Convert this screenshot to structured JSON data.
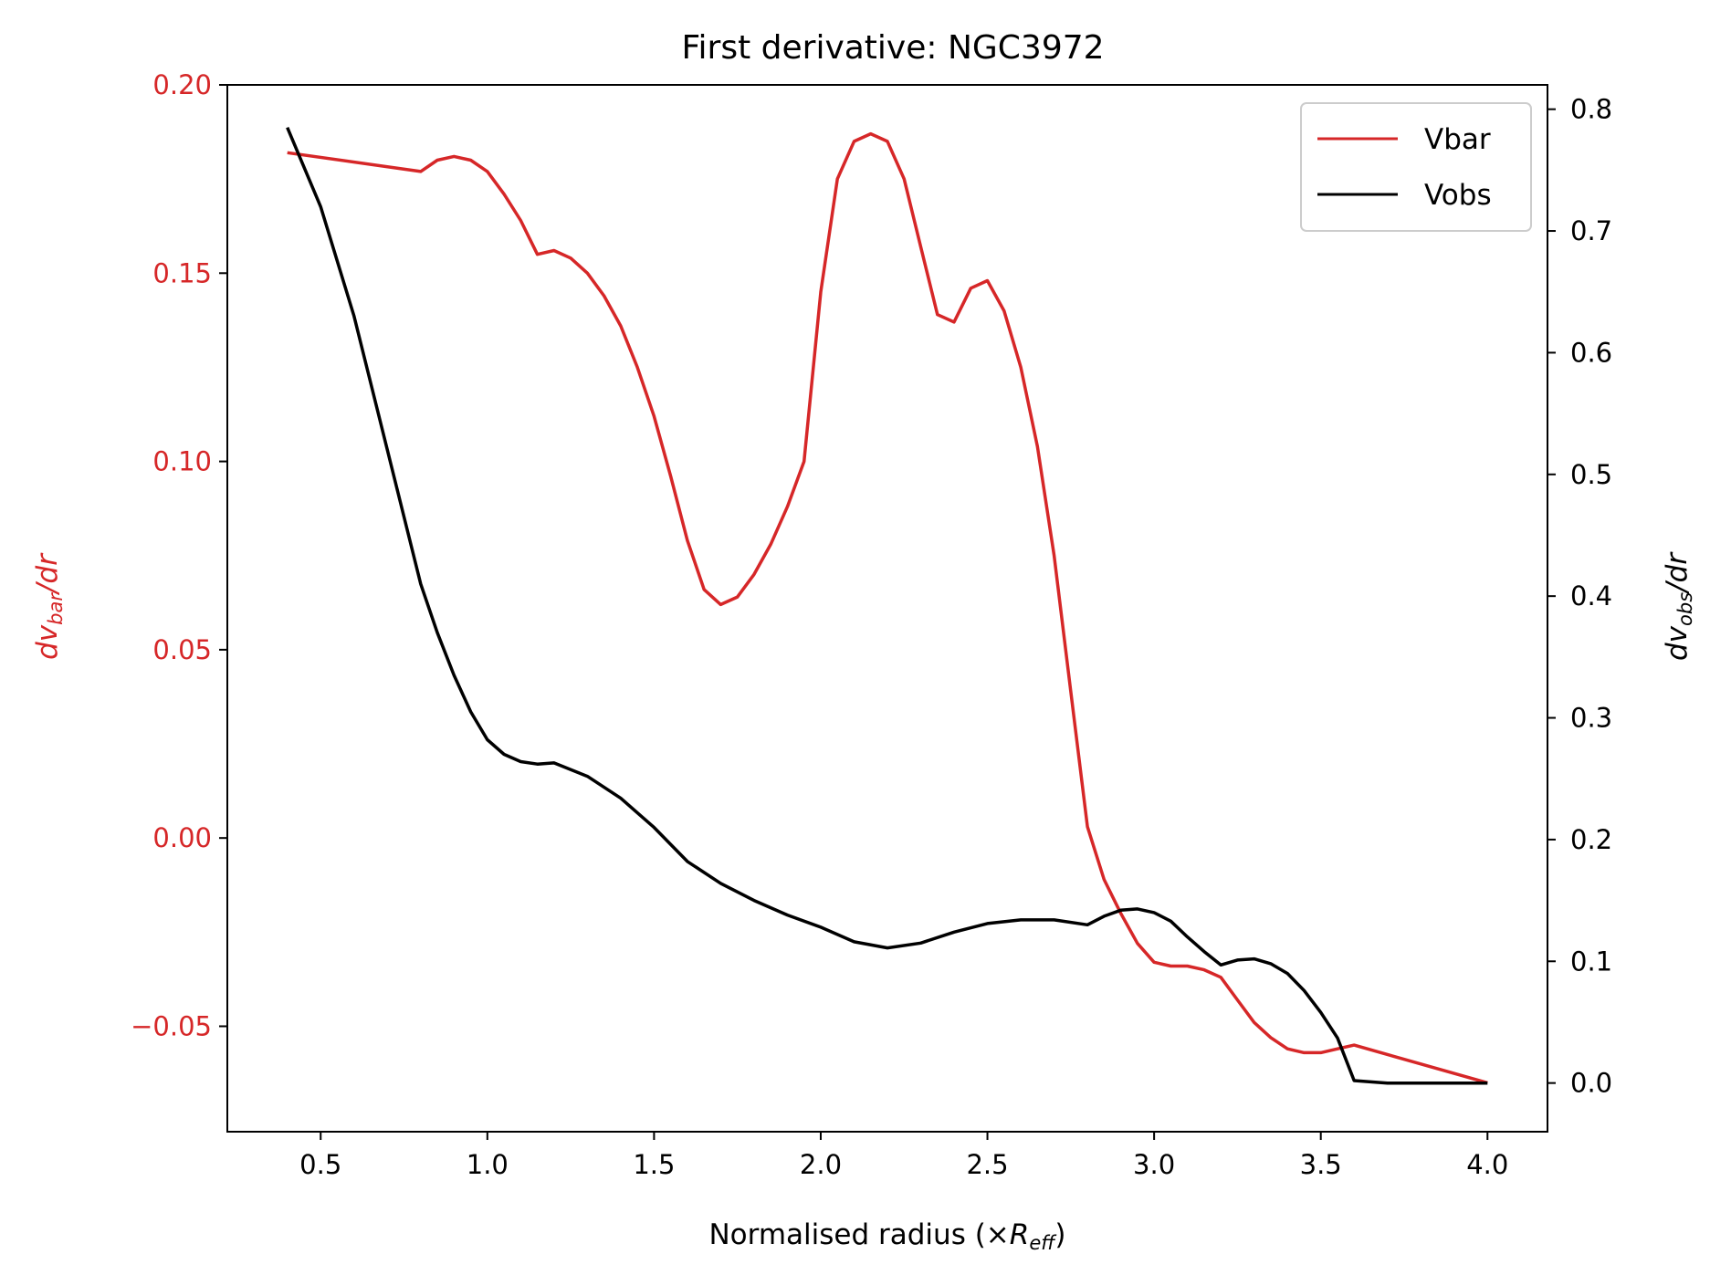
{
  "chart_data": {
    "type": "line",
    "title": "First derivative: NGC3972",
    "xlabel": "Normalised radius (×R_eff)",
    "xlabel_parts": {
      "main": "Normalised radius (×",
      "var": "R",
      "sub": "eff",
      "close": ")"
    },
    "ylabel_left": "dv_bar/dr",
    "ylabel_left_parts": {
      "var": "dv",
      "sub": "bar",
      "rest": "/dr"
    },
    "ylabel_right": "dv_obs/dr",
    "ylabel_right_parts": {
      "var": "dv",
      "sub": "obs",
      "rest": "/dr"
    },
    "xlim": [
      0.22,
      4.18
    ],
    "ylim_left": [
      -0.078,
      0.2
    ],
    "ylim_right": [
      -0.04,
      0.82
    ],
    "xticks": [
      0.5,
      1.0,
      1.5,
      2.0,
      2.5,
      3.0,
      3.5,
      4.0
    ],
    "xtick_labels": [
      "0.5",
      "1.0",
      "1.5",
      "2.0",
      "2.5",
      "3.0",
      "3.5",
      "4.0"
    ],
    "yticks_left": [
      -0.05,
      0.0,
      0.05,
      0.1,
      0.15,
      0.2
    ],
    "ytick_labels_left": [
      "−0.05",
      "0.00",
      "0.05",
      "0.10",
      "0.15",
      "0.20"
    ],
    "yticks_right": [
      0.0,
      0.1,
      0.2,
      0.3,
      0.4,
      0.5,
      0.6,
      0.7,
      0.8
    ],
    "ytick_labels_right": [
      "0.0",
      "0.1",
      "0.2",
      "0.3",
      "0.4",
      "0.5",
      "0.6",
      "0.7",
      "0.8"
    ],
    "grid": false,
    "legend_position": "upper right",
    "colors": {
      "left_axis": "#d62728",
      "right_axis": "#000000"
    },
    "series": [
      {
        "name": "Vbar",
        "axis": "left",
        "color": "#d62728",
        "x": [
          0.4,
          0.8,
          0.85,
          0.9,
          0.95,
          1.0,
          1.05,
          1.1,
          1.15,
          1.2,
          1.25,
          1.3,
          1.35,
          1.4,
          1.45,
          1.5,
          1.55,
          1.6,
          1.65,
          1.7,
          1.75,
          1.8,
          1.85,
          1.9,
          1.95,
          2.0,
          2.05,
          2.1,
          2.15,
          2.2,
          2.25,
          2.3,
          2.35,
          2.4,
          2.45,
          2.5,
          2.55,
          2.6,
          2.65,
          2.7,
          2.75,
          2.8,
          2.85,
          2.9,
          2.95,
          3.0,
          3.05,
          3.1,
          3.15,
          3.2,
          3.25,
          3.3,
          3.35,
          3.4,
          3.45,
          3.5,
          3.55,
          3.6,
          4.0
        ],
        "y": [
          0.182,
          0.177,
          0.18,
          0.181,
          0.18,
          0.177,
          0.171,
          0.164,
          0.155,
          0.156,
          0.154,
          0.15,
          0.144,
          0.136,
          0.125,
          0.112,
          0.096,
          0.079,
          0.066,
          0.062,
          0.064,
          0.07,
          0.078,
          0.088,
          0.1,
          0.145,
          0.175,
          0.185,
          0.187,
          0.185,
          0.175,
          0.157,
          0.139,
          0.137,
          0.146,
          0.148,
          0.14,
          0.125,
          0.104,
          0.075,
          0.039,
          0.003,
          -0.011,
          -0.02,
          -0.028,
          -0.033,
          -0.034,
          -0.034,
          -0.035,
          -0.037,
          -0.043,
          -0.049,
          -0.053,
          -0.056,
          -0.057,
          -0.057,
          -0.056,
          -0.055,
          -0.065
        ]
      },
      {
        "name": "Vobs",
        "axis": "right",
        "color": "#000000",
        "x": [
          0.4,
          0.5,
          0.6,
          0.7,
          0.8,
          0.85,
          0.9,
          0.95,
          1.0,
          1.05,
          1.1,
          1.15,
          1.2,
          1.3,
          1.4,
          1.5,
          1.6,
          1.7,
          1.8,
          1.9,
          2.0,
          2.1,
          2.2,
          2.3,
          2.4,
          2.5,
          2.6,
          2.7,
          2.8,
          2.85,
          2.9,
          2.95,
          3.0,
          3.05,
          3.1,
          3.15,
          3.2,
          3.25,
          3.3,
          3.35,
          3.4,
          3.45,
          3.5,
          3.55,
          3.6,
          3.7,
          4.0
        ],
        "y": [
          0.785,
          0.72,
          0.63,
          0.52,
          0.41,
          0.37,
          0.335,
          0.305,
          0.282,
          0.27,
          0.264,
          0.262,
          0.263,
          0.252,
          0.234,
          0.21,
          0.182,
          0.164,
          0.15,
          0.138,
          0.128,
          0.116,
          0.111,
          0.115,
          0.124,
          0.131,
          0.134,
          0.134,
          0.13,
          0.137,
          0.142,
          0.143,
          0.14,
          0.133,
          0.12,
          0.108,
          0.097,
          0.101,
          0.102,
          0.098,
          0.09,
          0.076,
          0.058,
          0.037,
          0.002,
          0.0,
          0.0
        ]
      }
    ]
  }
}
